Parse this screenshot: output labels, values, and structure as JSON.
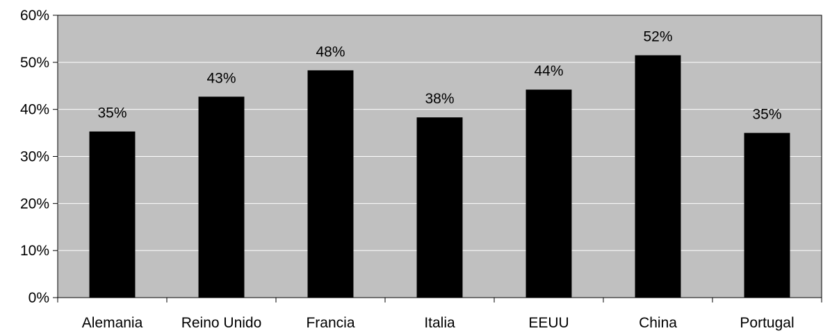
{
  "chart_data": {
    "type": "bar",
    "categories": [
      "Alemania",
      "Reino Unido",
      "Francia",
      "Italia",
      "EEUU",
      "China",
      "Portugal"
    ],
    "values": [
      35.3,
      42.7,
      48.3,
      38.3,
      44.2,
      51.5,
      35.0
    ],
    "data_labels": [
      "35%",
      "43%",
      "48%",
      "38%",
      "44%",
      "52%",
      "35%"
    ],
    "y_ticks": [
      "0%",
      "10%",
      "20%",
      "30%",
      "40%",
      "50%",
      "60%"
    ],
    "ylim": [
      0,
      60
    ],
    "grid": true,
    "legend": false,
    "colors": {
      "plot_background": "#c0c0c0",
      "bar": "#000000",
      "gridline": "#ffffff",
      "axis": "#000000"
    }
  }
}
